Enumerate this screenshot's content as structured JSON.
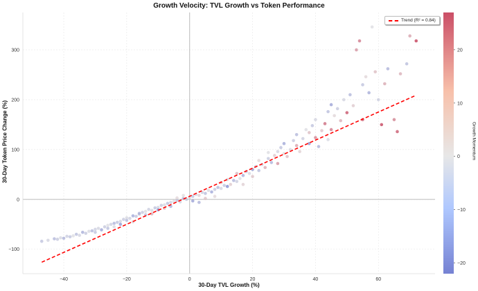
{
  "chart_data": {
    "type": "scatter",
    "title": "Growth Velocity: TVL Growth vs Token Performance",
    "xlabel": "30-Day TVL Growth (%)",
    "ylabel": "30-Day Token Price Change (%)",
    "xlim": [
      -53,
      78
    ],
    "ylim": [
      -149,
      375
    ],
    "xticks": [
      -40,
      -20,
      0,
      20,
      40,
      60
    ],
    "yticks": [
      -100,
      0,
      100,
      200,
      300
    ],
    "grid": true,
    "colorbar": {
      "label": "Growth Momentum",
      "range": [
        -22,
        27
      ],
      "ticks": [
        -20,
        -10,
        0,
        10,
        20
      ],
      "colormap": "coolwarm",
      "low_color": "#3b4cc0",
      "mid_color": "#dddddd",
      "high_color": "#b40426"
    },
    "legend": {
      "position": "top-right",
      "entries": [
        "Trend (R² = 0.84)"
      ]
    },
    "trend": {
      "x": [
        -47,
        72
      ],
      "y": [
        -126,
        209
      ],
      "color": "#ff0000",
      "style": "dashed"
    },
    "points": [
      [
        -47,
        -84,
        -6
      ],
      [
        -45,
        -82,
        -3
      ],
      [
        -43,
        -79,
        -8
      ],
      [
        -42,
        -80,
        -5
      ],
      [
        -41,
        -77,
        -2
      ],
      [
        -40,
        -78,
        -9
      ],
      [
        -39,
        -74,
        -4
      ],
      [
        -38,
        -75,
        -6
      ],
      [
        -37,
        -73,
        -1
      ],
      [
        -36,
        -70,
        -7
      ],
      [
        -35,
        -72,
        -3
      ],
      [
        -34,
        -66,
        -10
      ],
      [
        -33,
        -68,
        -5
      ],
      [
        -32,
        -64,
        -2
      ],
      [
        -31,
        -63,
        -8
      ],
      [
        -30,
        -60,
        -4
      ],
      [
        -30,
        -66,
        -6
      ],
      [
        -29,
        -58,
        -3
      ],
      [
        -28,
        -61,
        -12
      ],
      [
        -27,
        -55,
        -5
      ],
      [
        -26,
        -52,
        -1
      ],
      [
        -26,
        -58,
        -7
      ],
      [
        -25,
        -50,
        -4
      ],
      [
        -24,
        -48,
        -9
      ],
      [
        -24,
        -55,
        -2
      ],
      [
        -23,
        -46,
        -6
      ],
      [
        -22,
        -44,
        -3
      ],
      [
        -22,
        -50,
        -14
      ],
      [
        -21,
        -40,
        -5
      ],
      [
        -20,
        -42,
        -8
      ],
      [
        -20,
        -37,
        -2
      ],
      [
        -19,
        -38,
        -4
      ],
      [
        -18,
        -33,
        -11
      ],
      [
        -18,
        -45,
        3
      ],
      [
        -17,
        -34,
        -6
      ],
      [
        -16,
        -30,
        -3
      ],
      [
        -16,
        -28,
        -9
      ],
      [
        -15,
        -26,
        -5
      ],
      [
        -14,
        -24,
        -1
      ],
      [
        -14,
        -31,
        -7
      ],
      [
        -13,
        -20,
        -4
      ],
      [
        -12,
        -22,
        -2
      ],
      [
        -12,
        -29,
        8
      ],
      [
        -11,
        -17,
        -6
      ],
      [
        -10,
        -16,
        -3
      ],
      [
        -10,
        -21,
        -15
      ],
      [
        -9,
        -12,
        -5
      ],
      [
        -8,
        -11,
        -2
      ],
      [
        -8,
        -18,
        4
      ],
      [
        -7,
        -8,
        -7
      ],
      [
        -6,
        -6,
        -4
      ],
      [
        -6,
        -14,
        -10
      ],
      [
        -5,
        -4,
        -1
      ],
      [
        -4,
        -2,
        -6
      ],
      [
        -4,
        3,
        2
      ],
      [
        -3,
        -5,
        -3
      ],
      [
        -2,
        2,
        -8
      ],
      [
        -2,
        8,
        1
      ],
      [
        -1,
        0,
        -5
      ],
      [
        0,
        4,
        -2
      ],
      [
        1,
        6,
        -6
      ],
      [
        1,
        -3,
        -12
      ],
      [
        2,
        10,
        -3
      ],
      [
        3,
        8,
        3
      ],
      [
        3,
        -6,
        -9
      ],
      [
        4,
        14,
        -4
      ],
      [
        5,
        12,
        -7
      ],
      [
        5,
        2,
        5
      ],
      [
        6,
        18,
        -2
      ],
      [
        7,
        15,
        -11
      ],
      [
        8,
        20,
        -5
      ],
      [
        8,
        6,
        2
      ],
      [
        9,
        24,
        -8
      ],
      [
        10,
        22,
        -3
      ],
      [
        10,
        34,
        6
      ],
      [
        11,
        28,
        -6
      ],
      [
        12,
        26,
        -16
      ],
      [
        12,
        40,
        -2
      ],
      [
        13,
        30,
        4
      ],
      [
        14,
        38,
        -9
      ],
      [
        15,
        36,
        -4
      ],
      [
        15,
        52,
        7
      ],
      [
        16,
        42,
        -1
      ],
      [
        17,
        48,
        -10
      ],
      [
        17,
        30,
        3
      ],
      [
        18,
        56,
        -6
      ],
      [
        19,
        52,
        -2
      ],
      [
        20,
        60,
        -13
      ],
      [
        20,
        46,
        5
      ],
      [
        21,
        66,
        -4
      ],
      [
        22,
        58,
        -7
      ],
      [
        22,
        78,
        2
      ],
      [
        23,
        70,
        -3
      ],
      [
        24,
        64,
        9
      ],
      [
        25,
        82,
        -5
      ],
      [
        25,
        94,
        -1
      ],
      [
        26,
        74,
        -9
      ],
      [
        27,
        88,
        4
      ],
      [
        28,
        96,
        -3
      ],
      [
        28,
        72,
        12
      ],
      [
        29,
        104,
        -6
      ],
      [
        30,
        92,
        1
      ],
      [
        30,
        112,
        -11
      ],
      [
        31,
        86,
        6
      ],
      [
        32,
        100,
        -2
      ],
      [
        33,
        118,
        -5
      ],
      [
        34,
        108,
        10
      ],
      [
        34,
        130,
        -8
      ],
      [
        35,
        96,
        3
      ],
      [
        36,
        122,
        -4
      ],
      [
        37,
        140,
        -1
      ],
      [
        38,
        112,
        -14
      ],
      [
        38,
        134,
        6
      ],
      [
        39,
        148,
        -6
      ],
      [
        40,
        124,
        14
      ],
      [
        40,
        160,
        -3
      ],
      [
        41,
        106,
        -9
      ],
      [
        42,
        138,
        5
      ],
      [
        43,
        152,
        18
      ],
      [
        44,
        120,
        -2
      ],
      [
        44,
        176,
        -7
      ],
      [
        45,
        190,
        -12
      ],
      [
        45,
        140,
        16
      ],
      [
        46,
        168,
        2
      ],
      [
        47,
        182,
        -5
      ],
      [
        48,
        158,
        8
      ],
      [
        49,
        200,
        -3
      ],
      [
        50,
        174,
        22
      ],
      [
        51,
        210,
        -8
      ],
      [
        52,
        188,
        4
      ],
      [
        53,
        300,
        12
      ],
      [
        54,
        318,
        16
      ],
      [
        55,
        230,
        -6
      ],
      [
        55,
        160,
        20
      ],
      [
        56,
        246,
        2
      ],
      [
        57,
        214,
        -10
      ],
      [
        58,
        346,
        -1
      ],
      [
        59,
        256,
        6
      ],
      [
        60,
        200,
        -4
      ],
      [
        61,
        150,
        24
      ],
      [
        62,
        232,
        9
      ],
      [
        63,
        262,
        -9
      ],
      [
        65,
        160,
        15
      ],
      [
        66,
        136,
        21
      ],
      [
        67,
        252,
        8
      ],
      [
        69,
        272,
        -7
      ],
      [
        70,
        328,
        10
      ],
      [
        72,
        318,
        25
      ]
    ]
  }
}
